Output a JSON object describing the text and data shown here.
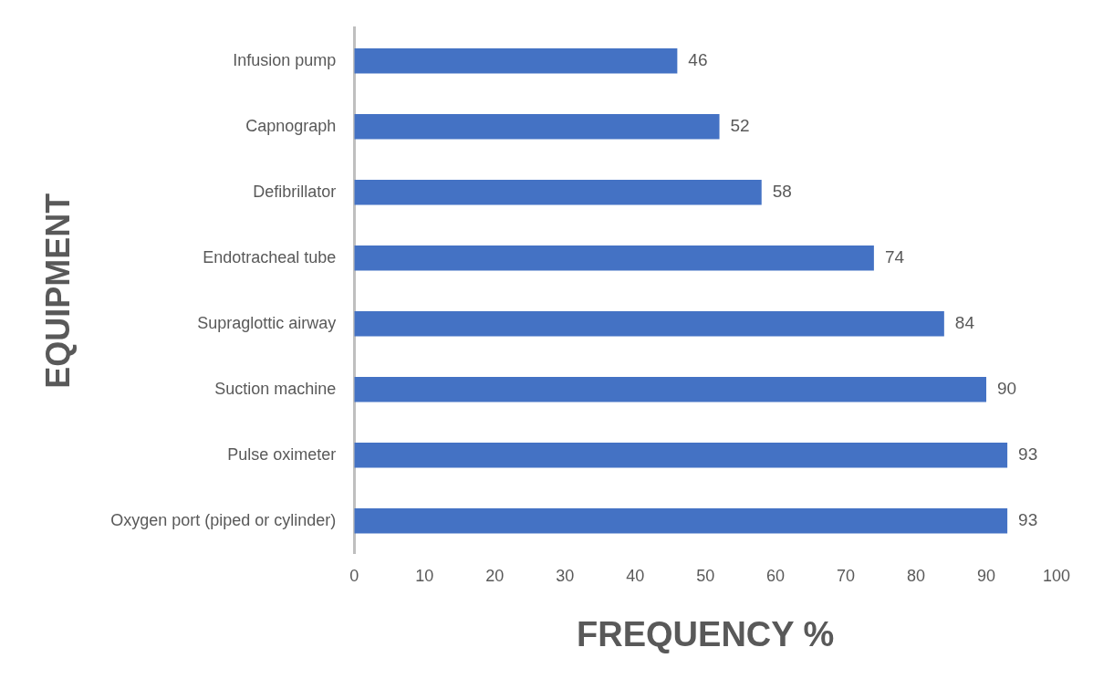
{
  "chart_data": {
    "type": "bar",
    "orientation": "horizontal",
    "categories": [
      "Infusion pump",
      "Capnograph",
      "Defibrillator",
      "Endotracheal tube",
      "Supraglottic airway",
      "Suction machine",
      "Pulse oximeter",
      "Oxygen port (piped or cylinder)"
    ],
    "values": [
      46,
      52,
      58,
      74,
      84,
      90,
      93,
      93
    ],
    "color": "#4472c4",
    "xlabel": "FREQUENCY %",
    "ylabel": "EQUIPMENT",
    "xlim": [
      0,
      100
    ],
    "xticks": [
      0,
      10,
      20,
      30,
      40,
      50,
      60,
      70,
      80,
      90,
      100
    ],
    "data_labels": true,
    "grid": false,
    "legend": false
  }
}
